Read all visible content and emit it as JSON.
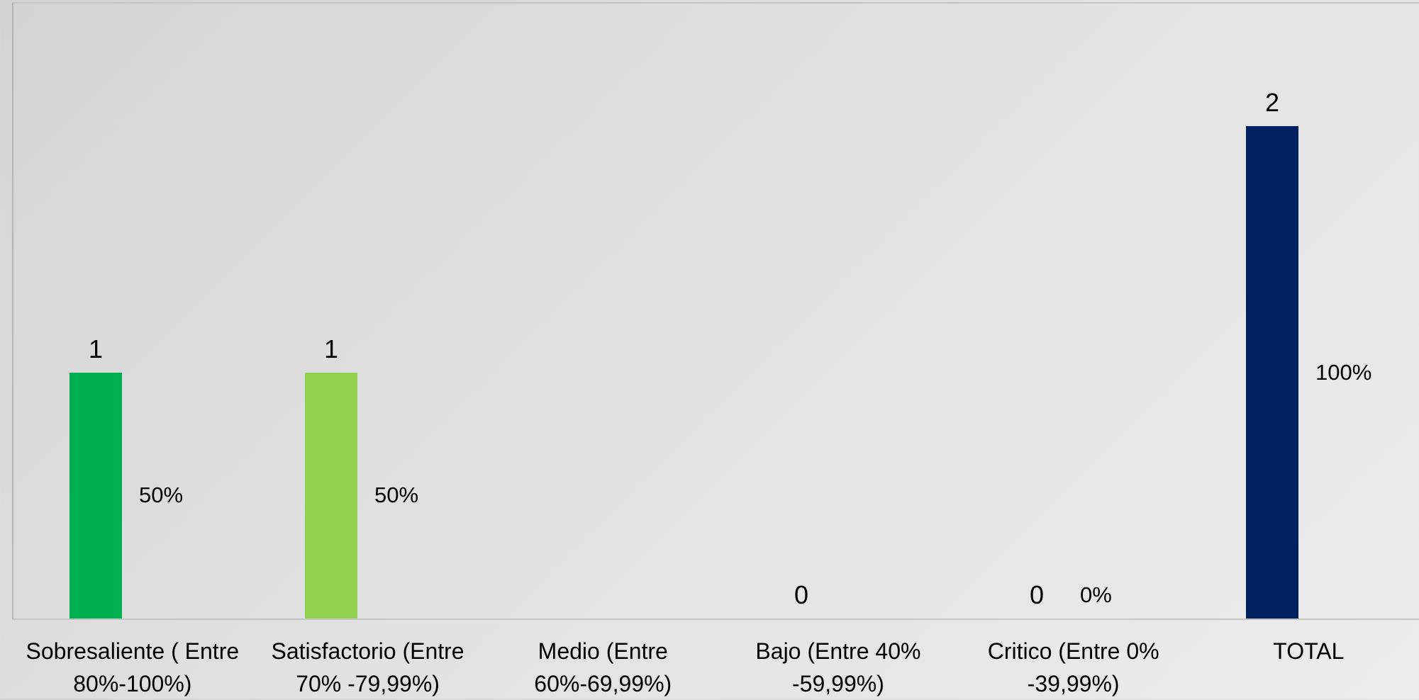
{
  "chart_data": {
    "type": "bar",
    "categories": [
      "Sobresaliente  ( Entre 80%-100%)",
      "Satisfactorio (Entre 70% -79,99%)",
      "Medio (Entre 60%-69,99%)",
      "Bajo (Entre 40% -59,99%)",
      "Critico (Entre 0% -39,99%)",
      "TOTAL"
    ],
    "values": [
      1,
      1,
      null,
      0,
      0,
      2
    ],
    "value_labels": [
      "1",
      "1",
      "",
      "0",
      "0",
      "2"
    ],
    "percentages": [
      50,
      50,
      null,
      null,
      0,
      100
    ],
    "percentage_labels": [
      "50%",
      "50%",
      "",
      "",
      "0%",
      "100%"
    ],
    "colors": [
      "#00b050",
      "#92d050",
      "#a6a6a6",
      "#a6a6a6",
      "#a6a6a6",
      "#002060"
    ],
    "ylim": [
      0,
      2
    ],
    "grid": false,
    "legend": "none"
  }
}
